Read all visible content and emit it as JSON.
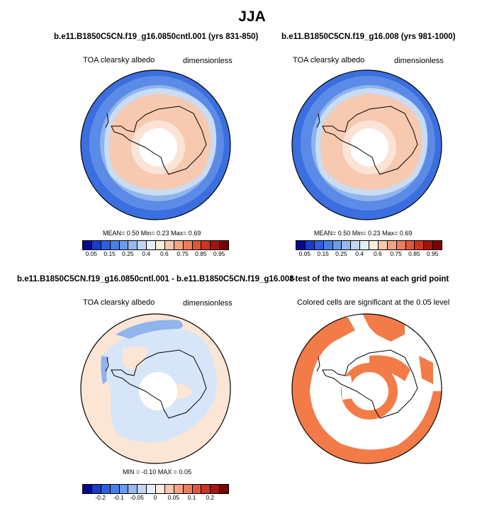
{
  "season": "JJA",
  "panels": {
    "p1": {
      "title": "b.e11.B1850C5CN.f19_g16.0850cntl.001 (yrs 831-850)",
      "variable": "TOA clearsky albedo",
      "units": "dimensionless",
      "stats": "MEAN=   0.50  Min=   0.23  Max=   0.69"
    },
    "p2": {
      "title": "b.e11.B1850C5CN.f19_g16.008 (yrs 981-1000)",
      "variable": "TOA clearsky albedo",
      "units": "dimensionless",
      "stats": "MEAN=   0.50  Min=   0.23  Max=   0.69"
    },
    "p3": {
      "title": "b.e11.B1850C5CN.f19_g16.0850cntl.001 - b.e11.B1850C5CN.f19_g16.008",
      "variable": "TOA clearsky albedo",
      "units": "dimensionless",
      "stats": "MIN =  -0.10 MAX =   0.05"
    },
    "p4": {
      "title": "t-test of the two means at each grid point",
      "subtitle": "Colored cells are significant at the 0.05 level"
    }
  },
  "colorbars": {
    "abs": {
      "colors": [
        "#08088c",
        "#1a3cc8",
        "#2f5fe0",
        "#4a7ee6",
        "#6d9bea",
        "#95b8ee",
        "#c2d6f2",
        "#e6eef8",
        "#fcecdc",
        "#f8c8ae",
        "#f3a384",
        "#ec7d5c",
        "#e0573b",
        "#cc3320",
        "#a31410",
        "#7a0404"
      ],
      "labels": [
        "0.05",
        "0.15",
        "0.25",
        "0.4",
        "0.6",
        "0.75",
        "0.85",
        "0.95"
      ]
    },
    "diff": {
      "colors": [
        "#08088c",
        "#1a3cc8",
        "#2f5fe0",
        "#4a7ee6",
        "#6d9bea",
        "#95b8ee",
        "#c2d6f2",
        "#e6eef8",
        "#fcecdc",
        "#f8c8ae",
        "#f3a384",
        "#ec7d5c",
        "#e0573b",
        "#cc3320",
        "#a31410",
        "#7a0404"
      ],
      "labels": [
        "-0.2",
        "-0.1",
        "-0.05",
        "0",
        "0.05",
        "0.1",
        "0.2"
      ]
    }
  },
  "map_colors": {
    "ocean_outer": "#5b8be6",
    "ocean_mid": "#8fb4ee",
    "ocean_inner": "#c9dcf4",
    "ice": "#f9dfcc",
    "land": "#f7c5ab",
    "pole": "#ffffff",
    "diff_pos": "#fbe6d6",
    "diff_neg": "#d6e6f8",
    "diff_strong_neg": "#7ea8ec",
    "sig": "#f37b48"
  }
}
